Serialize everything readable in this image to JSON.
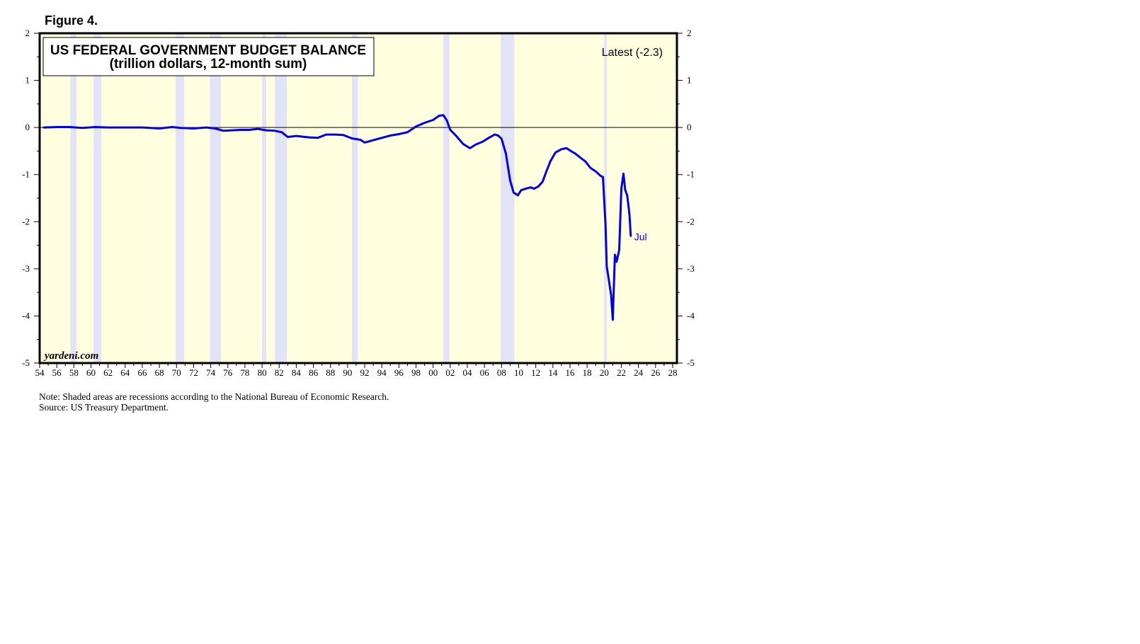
{
  "figure_label": "Figure 4.",
  "note": "Note: Shaded areas are recessions according to the National Bureau of Economic Research.",
  "source": "Source: US Treasury Department.",
  "colors": {
    "plot_background": "#ffffe0",
    "recession_shade": "#e3e3f8",
    "series_line": "#0000ee",
    "end_label": "#0000ee"
  },
  "chart_data": {
    "type": "line",
    "title": "US FEDERAL GOVERNMENT BUDGET BALANCE",
    "subtitle": "(trillion dollars, 12-month sum)",
    "annotation_latest": "Latest (-2.3)",
    "end_label": "Jul",
    "credit": "yardeni.com",
    "xlabel": "",
    "ylabel": "",
    "xlim": [
      1954,
      2028.5
    ],
    "ylim": [
      -5,
      2
    ],
    "x_tick_labels": [
      "54",
      "56",
      "58",
      "60",
      "62",
      "64",
      "66",
      "68",
      "70",
      "72",
      "74",
      "76",
      "78",
      "80",
      "82",
      "84",
      "86",
      "88",
      "90",
      "92",
      "94",
      "96",
      "98",
      "00",
      "02",
      "04",
      "06",
      "08",
      "10",
      "12",
      "14",
      "16",
      "18",
      "20",
      "22",
      "24",
      "26",
      "28"
    ],
    "y_ticks": [
      2,
      1,
      0,
      -1,
      -2,
      -3,
      -4,
      -5
    ],
    "y_tick_labels": [
      "2",
      "1",
      "0",
      "-1",
      "-2",
      "-3",
      "-4",
      "-5"
    ],
    "zero_line": 0,
    "grid": false,
    "axes_both_sides": true,
    "recessions": [
      [
        1957.6,
        1958.3
      ],
      [
        1960.3,
        1961.2
      ],
      [
        1969.9,
        1970.9
      ],
      [
        1973.9,
        1975.2
      ],
      [
        1980.0,
        1980.5
      ],
      [
        1981.5,
        1982.9
      ],
      [
        1990.5,
        1991.2
      ],
      [
        2001.2,
        2001.9
      ],
      [
        2007.9,
        2009.5
      ],
      [
        2020.0,
        2020.3
      ]
    ],
    "series": [
      {
        "points": [
          [
            1954.5,
            0.0
          ],
          [
            1956.0,
            0.01
          ],
          [
            1957.5,
            0.01
          ],
          [
            1959.0,
            -0.01
          ],
          [
            1960.5,
            0.01
          ],
          [
            1962.0,
            0.0
          ],
          [
            1964.0,
            0.0
          ],
          [
            1966.0,
            0.0
          ],
          [
            1968.0,
            -0.02
          ],
          [
            1969.5,
            0.01
          ],
          [
            1970.5,
            -0.01
          ],
          [
            1972.0,
            -0.02
          ],
          [
            1973.5,
            0.0
          ],
          [
            1974.5,
            -0.02
          ],
          [
            1975.5,
            -0.07
          ],
          [
            1976.5,
            -0.06
          ],
          [
            1977.5,
            -0.05
          ],
          [
            1978.5,
            -0.05
          ],
          [
            1979.5,
            -0.03
          ],
          [
            1980.5,
            -0.06
          ],
          [
            1981.5,
            -0.07
          ],
          [
            1982.3,
            -0.1
          ],
          [
            1983.0,
            -0.2
          ],
          [
            1984.0,
            -0.18
          ],
          [
            1985.5,
            -0.21
          ],
          [
            1986.5,
            -0.22
          ],
          [
            1987.5,
            -0.15
          ],
          [
            1988.5,
            -0.15
          ],
          [
            1989.5,
            -0.16
          ],
          [
            1990.5,
            -0.23
          ],
          [
            1991.5,
            -0.26
          ],
          [
            1992.0,
            -0.32
          ],
          [
            1993.0,
            -0.27
          ],
          [
            1994.0,
            -0.22
          ],
          [
            1995.0,
            -0.17
          ],
          [
            1996.0,
            -0.14
          ],
          [
            1997.0,
            -0.1
          ],
          [
            1998.0,
            0.02
          ],
          [
            1999.0,
            0.1
          ],
          [
            2000.0,
            0.16
          ],
          [
            2000.7,
            0.25
          ],
          [
            2001.2,
            0.26
          ],
          [
            2001.6,
            0.15
          ],
          [
            2002.0,
            -0.05
          ],
          [
            2002.7,
            -0.18
          ],
          [
            2003.5,
            -0.35
          ],
          [
            2004.3,
            -0.44
          ],
          [
            2005.0,
            -0.36
          ],
          [
            2005.8,
            -0.3
          ],
          [
            2006.5,
            -0.22
          ],
          [
            2007.2,
            -0.15
          ],
          [
            2007.6,
            -0.17
          ],
          [
            2008.0,
            -0.24
          ],
          [
            2008.5,
            -0.55
          ],
          [
            2009.0,
            -1.12
          ],
          [
            2009.4,
            -1.38
          ],
          [
            2009.9,
            -1.44
          ],
          [
            2010.3,
            -1.33
          ],
          [
            2010.8,
            -1.3
          ],
          [
            2011.4,
            -1.27
          ],
          [
            2011.8,
            -1.3
          ],
          [
            2012.3,
            -1.25
          ],
          [
            2012.8,
            -1.15
          ],
          [
            2013.2,
            -0.95
          ],
          [
            2013.7,
            -0.72
          ],
          [
            2014.3,
            -0.53
          ],
          [
            2015.0,
            -0.46
          ],
          [
            2015.6,
            -0.44
          ],
          [
            2016.1,
            -0.5
          ],
          [
            2016.6,
            -0.55
          ],
          [
            2017.2,
            -0.64
          ],
          [
            2017.8,
            -0.72
          ],
          [
            2018.4,
            -0.86
          ],
          [
            2019.0,
            -0.93
          ],
          [
            2019.6,
            -1.03
          ],
          [
            2019.85,
            -1.05
          ],
          [
            2020.15,
            -2.05
          ],
          [
            2020.3,
            -2.95
          ],
          [
            2020.55,
            -3.25
          ],
          [
            2020.8,
            -3.55
          ],
          [
            2021.0,
            -4.08
          ],
          [
            2021.25,
            -2.7
          ],
          [
            2021.45,
            -2.85
          ],
          [
            2021.75,
            -2.6
          ],
          [
            2022.0,
            -1.3
          ],
          [
            2022.25,
            -0.98
          ],
          [
            2022.45,
            -1.32
          ],
          [
            2022.7,
            -1.45
          ],
          [
            2022.95,
            -1.85
          ],
          [
            2023.1,
            -2.3
          ]
        ]
      }
    ]
  }
}
